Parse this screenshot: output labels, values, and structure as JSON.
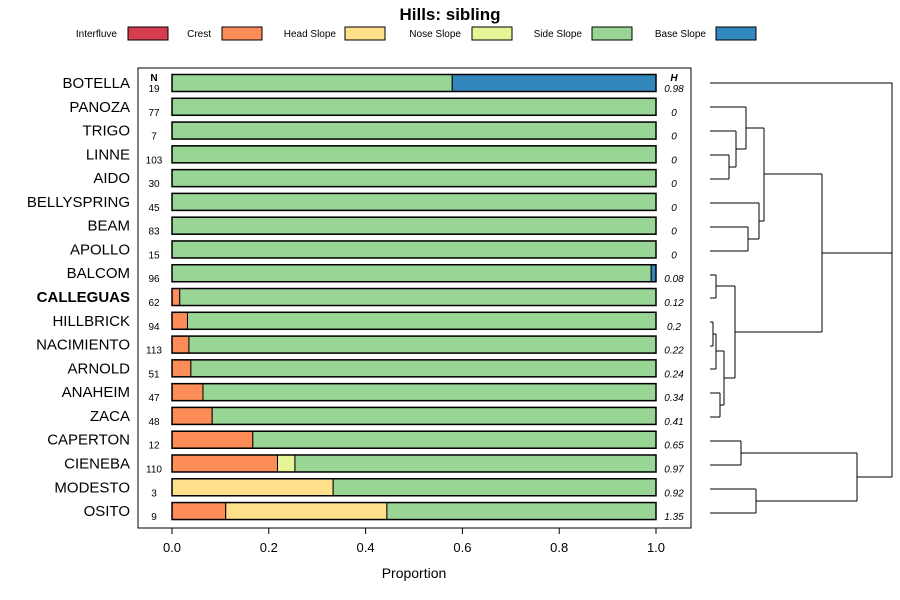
{
  "chart_data": {
    "type": "bar",
    "orientation": "horizontal",
    "stacked": true,
    "title": "Hills: sibling",
    "xlabel": "Proportion",
    "ylabel": "",
    "xlim": [
      0,
      1
    ],
    "x_ticks": [
      "0.0",
      "0.2",
      "0.4",
      "0.6",
      "0.8",
      "1.0"
    ],
    "x_tick_values": [
      0,
      0.2,
      0.4,
      0.6,
      0.8,
      1.0
    ],
    "n_header": "N",
    "h_header": "H",
    "highlight_category": "CALLEGUAS",
    "legend_position": "top",
    "categories": [
      "BOTELLA",
      "PANOZA",
      "TRIGO",
      "LINNE",
      "AIDO",
      "BELLYSPRING",
      "BEAM",
      "APOLLO",
      "BALCOM",
      "CALLEGUAS",
      "HILLBRICK",
      "NACIMIENTO",
      "ARNOLD",
      "ANAHEIM",
      "ZACA",
      "CAPERTON",
      "CIENEBA",
      "MODESTO",
      "OSITO"
    ],
    "n_values": [
      "19",
      "77",
      "7",
      "103",
      "30",
      "45",
      "83",
      "15",
      "96",
      "62",
      "94",
      "113",
      "51",
      "47",
      "48",
      "12",
      "110",
      "3",
      "9"
    ],
    "h_values": [
      "0.98",
      "0",
      "0",
      "0",
      "0",
      "0",
      "0",
      "0",
      "0.08",
      "0.12",
      "0.2",
      "0.22",
      "0.24",
      "0.34",
      "0.41",
      "0.65",
      "0.97",
      "0.92",
      "1.35"
    ],
    "series": [
      {
        "name": "Interfluve",
        "color": "#D53E4F",
        "values": [
          0,
          0,
          0,
          0,
          0,
          0,
          0,
          0,
          0,
          0,
          0,
          0,
          0,
          0,
          0,
          0,
          0,
          0,
          0
        ]
      },
      {
        "name": "Crest",
        "color": "#FC8D59",
        "values": [
          0,
          0,
          0,
          0,
          0,
          0,
          0,
          0,
          0,
          0.016,
          0.032,
          0.035,
          0.039,
          0.064,
          0.083,
          0.167,
          0.218,
          0,
          0.111
        ]
      },
      {
        "name": "Head Slope",
        "color": "#FEE08B",
        "values": [
          0,
          0,
          0,
          0,
          0,
          0,
          0,
          0,
          0,
          0,
          0,
          0,
          0,
          0,
          0,
          0,
          0,
          0.333,
          0.333
        ]
      },
      {
        "name": "Nose Slope",
        "color": "#E6F598",
        "values": [
          0,
          0,
          0,
          0,
          0,
          0,
          0,
          0,
          0,
          0,
          0,
          0,
          0,
          0,
          0,
          0,
          0.036,
          0,
          0
        ]
      },
      {
        "name": "Side Slope",
        "color": "#99D594",
        "values": [
          0.579,
          1,
          1,
          1,
          1,
          1,
          1,
          1,
          0.99,
          0.984,
          0.968,
          0.965,
          0.961,
          0.936,
          0.917,
          0.833,
          0.746,
          0.667,
          0.556
        ]
      },
      {
        "name": "Base Slope",
        "color": "#3288BD",
        "values": [
          0.421,
          0,
          0,
          0,
          0,
          0,
          0,
          0,
          0.01,
          0,
          0,
          0,
          0,
          0,
          0,
          0,
          0,
          0,
          0
        ]
      }
    ],
    "dendrogram": "hierarchical clustering tree of the 19 series"
  }
}
